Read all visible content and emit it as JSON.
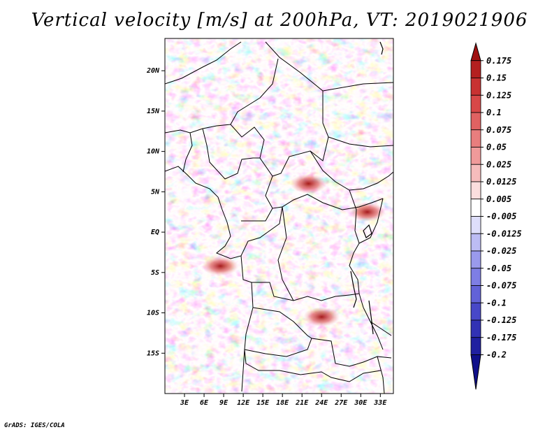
{
  "title": "Vertical velocity [m/s] at 200hPa, VT: 2019021906",
  "credit": "GrADS: IGES/COLA",
  "map": {
    "projection": "latlon",
    "lon_range": [
      0,
      35
    ],
    "lat_range": [
      -20,
      24
    ],
    "lat_ticks": [
      {
        "value": 20,
        "label": "20N"
      },
      {
        "value": 15,
        "label": "15N"
      },
      {
        "value": 10,
        "label": "10N"
      },
      {
        "value": 5,
        "label": "5N"
      },
      {
        "value": 0,
        "label": "EQ"
      },
      {
        "value": -5,
        "label": "5S"
      },
      {
        "value": -10,
        "label": "10S"
      },
      {
        "value": -15,
        "label": "15S"
      }
    ],
    "lon_ticks": [
      {
        "value": 3,
        "label": "3E"
      },
      {
        "value": 6,
        "label": "6E"
      },
      {
        "value": 9,
        "label": "9E"
      },
      {
        "value": 12,
        "label": "12E"
      },
      {
        "value": 15,
        "label": "15E"
      },
      {
        "value": 18,
        "label": "18E"
      },
      {
        "value": 21,
        "label": "21E"
      },
      {
        "value": 24,
        "label": "24E"
      },
      {
        "value": 27,
        "label": "27E"
      },
      {
        "value": 30,
        "label": "30E"
      },
      {
        "value": 33,
        "label": "33E"
      }
    ]
  },
  "colorbar": {
    "levels": [
      "0.175",
      "0.15",
      "0.125",
      "0.1",
      "0.075",
      "0.05",
      "0.025",
      "0.0125",
      "0.005",
      "-0.005",
      "-0.0125",
      "-0.025",
      "-0.05",
      "-0.075",
      "-0.1",
      "-0.125",
      "-0.175",
      "-0.2"
    ],
    "colors": [
      "#a01010",
      "#b42020",
      "#c83232",
      "#d84848",
      "#e06262",
      "#e87e7e",
      "#f09a9a",
      "#f6bcbc",
      "#fbdede",
      "#ffffff",
      "#dedefb",
      "#bcbcf4",
      "#9a9aec",
      "#7e7ee4",
      "#6262d8",
      "#4848c8",
      "#3232b4",
      "#2020a0",
      "#10108a"
    ]
  },
  "features": [
    {
      "name": "strong-ascent-congo-coast",
      "lon": 8.5,
      "lat": -4.2,
      "sign": "up"
    },
    {
      "name": "strong-ascent-zambia",
      "lon": 24,
      "lat": -10.5,
      "sign": "up"
    },
    {
      "name": "ascent-band-south-sudan",
      "lon": 22,
      "lat": 6,
      "sign": "up"
    },
    {
      "name": "ascent-ethiopia",
      "lon": 31,
      "lat": 2.5,
      "sign": "up"
    }
  ]
}
